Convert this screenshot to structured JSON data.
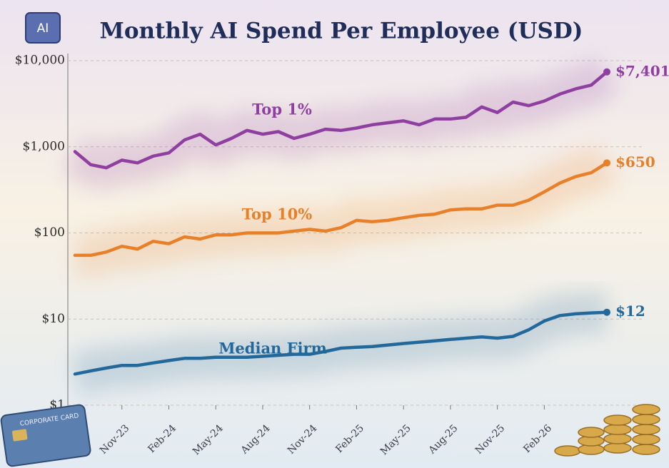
{
  "chart_data": {
    "type": "line",
    "title": "Monthly AI Spend Per Employee (USD)",
    "x": [
      null,
      null,
      null,
      "Nov-23",
      null,
      null,
      "Feb-24",
      null,
      null,
      "May-24",
      null,
      null,
      "Aug-24",
      null,
      null,
      "Nov-24",
      null,
      null,
      "Feb-25",
      null,
      null,
      "May-25",
      null,
      null,
      "Aug-25",
      null,
      null,
      "Nov-25",
      null,
      null,
      "Feb-26",
      null,
      null,
      null,
      null
    ],
    "log_scale": true,
    "grid": true,
    "ylim": [
      1,
      10000
    ],
    "yticks": [
      {
        "value": 1,
        "label": "$1"
      },
      {
        "value": 10,
        "label": "$10"
      },
      {
        "value": 100,
        "label": "$100"
      },
      {
        "value": 1000,
        "label": "$1,000"
      },
      {
        "value": 10000,
        "label": "$10,000"
      }
    ],
    "series": [
      {
        "name": "Top 1%",
        "color": "#8e3fa0",
        "values": [
          880,
          620,
          570,
          700,
          650,
          780,
          850,
          1200,
          1400,
          1050,
          1250,
          1550,
          1400,
          1500,
          1250,
          1400,
          1600,
          1550,
          1650,
          1800,
          1900,
          2000,
          1800,
          2100,
          2100,
          2200,
          2900,
          2500,
          3300,
          3000,
          3400,
          4100,
          4700,
          5200,
          7401
        ],
        "value_labels": [
          null,
          null,
          null,
          null,
          null,
          null,
          null,
          null,
          null,
          null,
          null,
          null,
          null,
          null,
          null,
          null,
          null,
          null,
          null,
          null,
          null,
          null,
          null,
          null,
          null,
          null,
          null,
          null,
          null,
          null,
          null,
          null,
          null,
          null,
          "$7,401"
        ]
      },
      {
        "name": "Top 10%",
        "color": "#e8802a",
        "values": [
          55,
          55,
          60,
          70,
          65,
          80,
          75,
          90,
          85,
          95,
          95,
          100,
          100,
          100,
          105,
          110,
          105,
          115,
          140,
          135,
          140,
          150,
          160,
          165,
          185,
          190,
          190,
          210,
          210,
          240,
          300,
          380,
          450,
          500,
          650
        ],
        "value_labels": [
          null,
          null,
          null,
          null,
          null,
          null,
          null,
          null,
          null,
          null,
          null,
          null,
          null,
          null,
          null,
          null,
          null,
          null,
          null,
          null,
          null,
          null,
          null,
          null,
          null,
          null,
          null,
          null,
          null,
          null,
          null,
          null,
          null,
          null,
          "$650"
        ]
      },
      {
        "name": "Median Firm",
        "color": "#23689a",
        "values": [
          2.3,
          2.5,
          2.7,
          2.9,
          2.9,
          3.1,
          3.3,
          3.5,
          3.5,
          3.6,
          3.6,
          3.6,
          3.7,
          3.8,
          3.9,
          3.9,
          4.2,
          4.6,
          4.7,
          4.8,
          5.0,
          5.2,
          5.4,
          5.6,
          5.8,
          6.0,
          6.2,
          6.0,
          6.3,
          7.5,
          9.5,
          11,
          11.5,
          11.8,
          12
        ],
        "value_labels": [
          null,
          null,
          null,
          null,
          null,
          null,
          null,
          null,
          null,
          null,
          null,
          null,
          null,
          null,
          null,
          null,
          null,
          null,
          null,
          null,
          null,
          null,
          null,
          null,
          null,
          null,
          null,
          null,
          null,
          null,
          null,
          null,
          null,
          null,
          "$12"
        ]
      }
    ]
  },
  "badge": "AI",
  "card": "CORPORATE CARD"
}
